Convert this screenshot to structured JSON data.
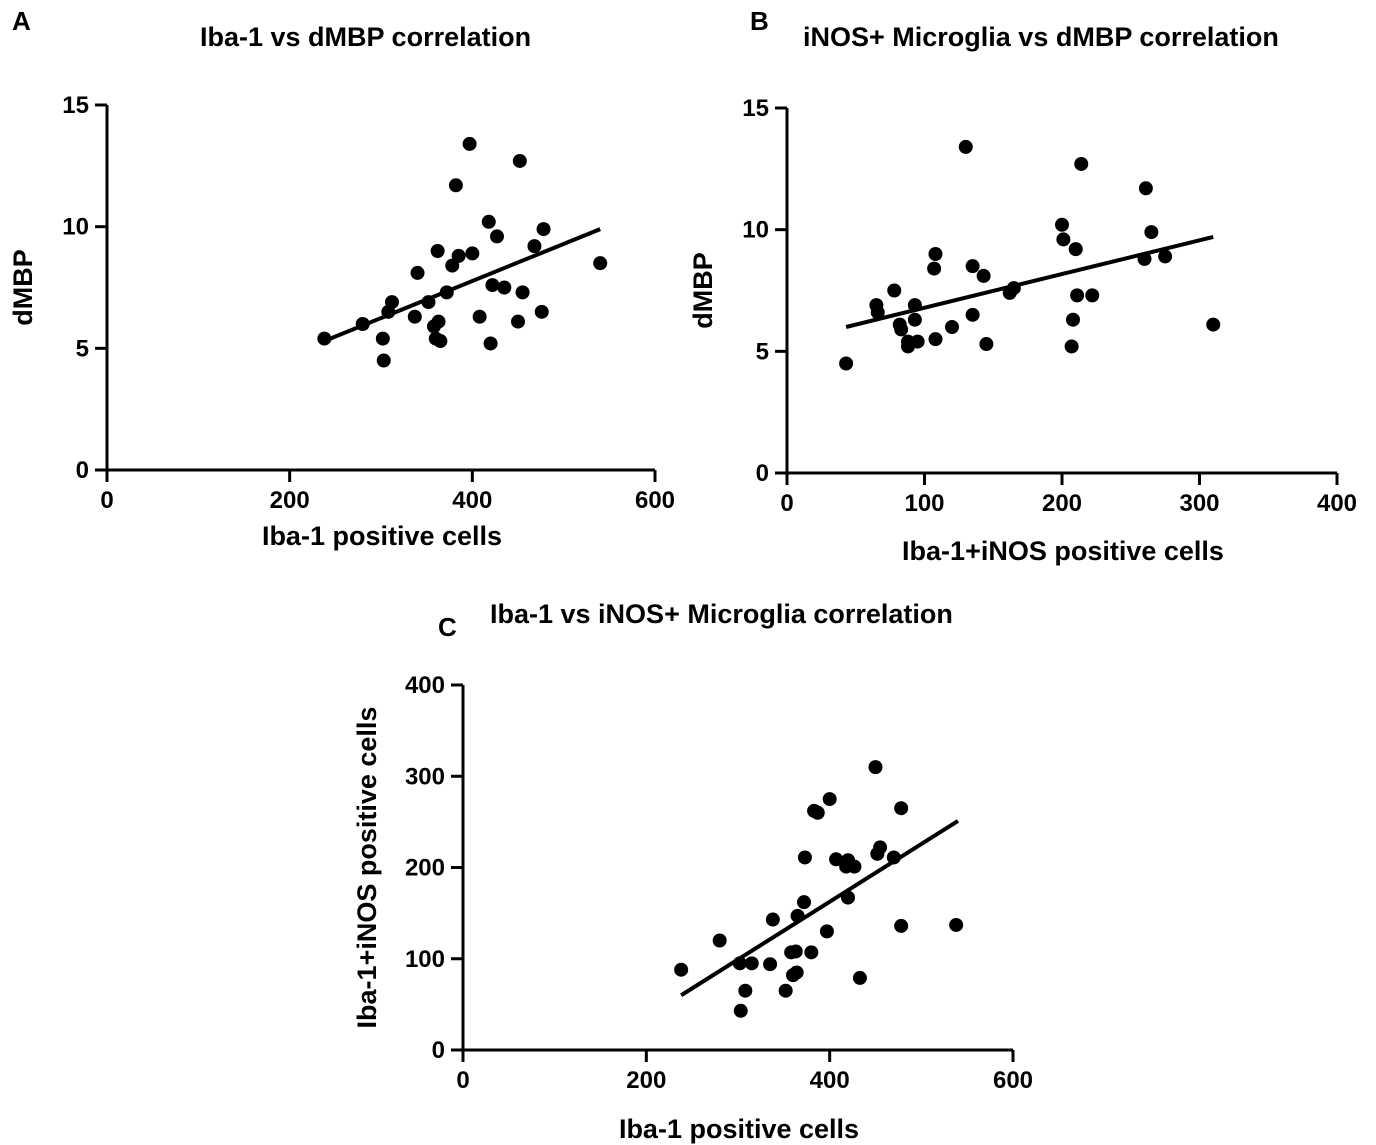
{
  "colors": {
    "marker": "#000000",
    "axis": "#000000",
    "fit_line": "#000000",
    "background": "#ffffff"
  },
  "chart_data": [
    {
      "panel": "A",
      "type": "scatter",
      "title": "Iba-1 vs dMBP correlation",
      "xlabel": "Iba-1 positive cells",
      "ylabel": "dMBP",
      "xlim": [
        0,
        600
      ],
      "ylim": [
        0,
        15
      ],
      "xticks": [
        0,
        200,
        400,
        600
      ],
      "yticks": [
        0,
        5,
        10,
        15
      ],
      "grid": false,
      "series": [
        {
          "points": [
            [
              238,
              5.4
            ],
            [
              280,
              6.0
            ],
            [
              302,
              5.4
            ],
            [
              303,
              4.5
            ],
            [
              308,
              6.5
            ],
            [
              312,
              6.9
            ],
            [
              337,
              6.3
            ],
            [
              340,
              8.1
            ],
            [
              352,
              6.9
            ],
            [
              358,
              5.9
            ],
            [
              360,
              5.4
            ],
            [
              362,
              9.0
            ],
            [
              363,
              6.1
            ],
            [
              365,
              5.3
            ],
            [
              372,
              7.3
            ],
            [
              378,
              8.4
            ],
            [
              382,
              11.7
            ],
            [
              385,
              8.8
            ],
            [
              397,
              13.4
            ],
            [
              400,
              8.9
            ],
            [
              408,
              6.3
            ],
            [
              418,
              10.2
            ],
            [
              420,
              5.2
            ],
            [
              422,
              7.6
            ],
            [
              427,
              9.6
            ],
            [
              435,
              7.5
            ],
            [
              450,
              6.1
            ],
            [
              452,
              12.7
            ],
            [
              455,
              7.3
            ],
            [
              468,
              9.2
            ],
            [
              476,
              6.5
            ],
            [
              478,
              9.9
            ],
            [
              540,
              8.5
            ]
          ],
          "fit_line": [
            [
              238,
              5.3
            ],
            [
              540,
              9.9
            ]
          ]
        }
      ]
    },
    {
      "panel": "B",
      "type": "scatter",
      "title": "iNOS+ Microglia vs dMBP correlation",
      "xlabel": "Iba-1+iNOS positive cells",
      "ylabel": "dMBP",
      "xlim": [
        0,
        400
      ],
      "ylim": [
        0,
        15
      ],
      "xticks": [
        0,
        100,
        200,
        300,
        400
      ],
      "yticks": [
        0,
        5,
        10,
        15
      ],
      "grid": false,
      "series": [
        {
          "points": [
            [
              43,
              4.5
            ],
            [
              65,
              6.9
            ],
            [
              66,
              6.6
            ],
            [
              78,
              7.5
            ],
            [
              82,
              6.1
            ],
            [
              83,
              5.9
            ],
            [
              88,
              5.4
            ],
            [
              88,
              5.2
            ],
            [
              93,
              6.9
            ],
            [
              93,
              6.3
            ],
            [
              95,
              5.4
            ],
            [
              107,
              8.4
            ],
            [
              108,
              9.0
            ],
            [
              108,
              5.5
            ],
            [
              120,
              6.0
            ],
            [
              130,
              13.4
            ],
            [
              135,
              8.5
            ],
            [
              135,
              6.5
            ],
            [
              143,
              8.1
            ],
            [
              145,
              5.3
            ],
            [
              162,
              7.4
            ],
            [
              165,
              7.6
            ],
            [
              200,
              10.2
            ],
            [
              201,
              9.6
            ],
            [
              207,
              5.2
            ],
            [
              208,
              6.3
            ],
            [
              210,
              9.2
            ],
            [
              211,
              7.3
            ],
            [
              214,
              12.7
            ],
            [
              222,
              7.3
            ],
            [
              260,
              8.8
            ],
            [
              261,
              11.7
            ],
            [
              265,
              9.9
            ],
            [
              275,
              8.9
            ],
            [
              310,
              6.1
            ]
          ],
          "fit_line": [
            [
              43,
              6.0
            ],
            [
              310,
              9.7
            ]
          ]
        }
      ]
    },
    {
      "panel": "C",
      "type": "scatter",
      "title": "Iba-1 vs iNOS+ Microglia correlation",
      "xlabel": "Iba-1 positive cells",
      "ylabel": "Iba-1+iNOS positive cells",
      "xlim": [
        0,
        600
      ],
      "ylim": [
        0,
        400
      ],
      "xticks": [
        0,
        200,
        400,
        600
      ],
      "yticks": [
        0,
        100,
        200,
        300,
        400
      ],
      "grid": false,
      "series": [
        {
          "points": [
            [
              238,
              88
            ],
            [
              280,
              120
            ],
            [
              302,
              95
            ],
            [
              303,
              43
            ],
            [
              308,
              65
            ],
            [
              315,
              95
            ],
            [
              335,
              94
            ],
            [
              338,
              143
            ],
            [
              352,
              65
            ],
            [
              358,
              107
            ],
            [
              360,
              82
            ],
            [
              363,
              108
            ],
            [
              364,
              85
            ],
            [
              365,
              147
            ],
            [
              372,
              162
            ],
            [
              373,
              211
            ],
            [
              380,
              107
            ],
            [
              383,
              262
            ],
            [
              387,
              260
            ],
            [
              397,
              130
            ],
            [
              400,
              275
            ],
            [
              407,
              209
            ],
            [
              418,
              201
            ],
            [
              420,
              208
            ],
            [
              420,
              167
            ],
            [
              427,
              201
            ],
            [
              433,
              79
            ],
            [
              450,
              310
            ],
            [
              452,
              215
            ],
            [
              455,
              222
            ],
            [
              470,
              211
            ],
            [
              478,
              265
            ],
            [
              478,
              136
            ],
            [
              538,
              137
            ]
          ],
          "fit_line": [
            [
              238,
              60
            ],
            [
              540,
              251
            ]
          ]
        }
      ]
    }
  ]
}
